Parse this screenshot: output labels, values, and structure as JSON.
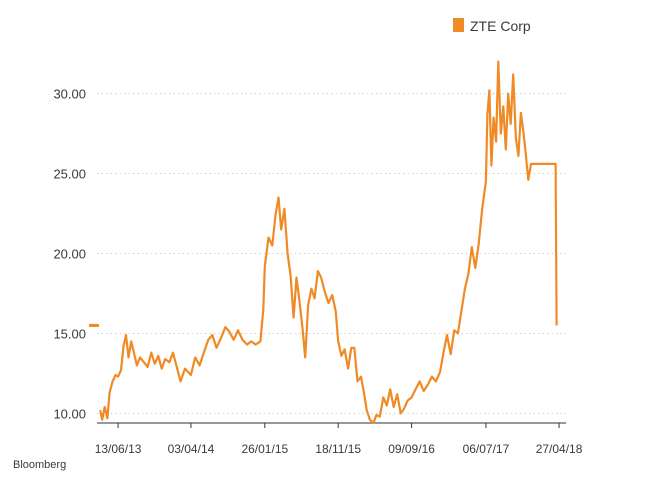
{
  "chart_data": {
    "type": "line",
    "title": "",
    "xlabel": "",
    "ylabel": "",
    "legend": {
      "position": "top-right"
    },
    "series": [
      {
        "name": "ZTE Corp",
        "color": "#f08a24",
        "points": [
          [
            "2013-04-02",
            10.2
          ],
          [
            "2013-04-10",
            9.6
          ],
          [
            "2013-04-20",
            10.4
          ],
          [
            "2013-05-01",
            9.7
          ],
          [
            "2013-05-10",
            11.3
          ],
          [
            "2013-05-22",
            12.0
          ],
          [
            "2013-06-03",
            12.4
          ],
          [
            "2013-06-13",
            12.3
          ],
          [
            "2013-06-25",
            12.7
          ],
          [
            "2013-07-05",
            14.2
          ],
          [
            "2013-07-15",
            14.9
          ],
          [
            "2013-07-25",
            13.5
          ],
          [
            "2013-08-05",
            14.5
          ],
          [
            "2013-08-16",
            13.8
          ],
          [
            "2013-08-28",
            13.0
          ],
          [
            "2013-09-10",
            13.5
          ],
          [
            "2013-09-25",
            13.2
          ],
          [
            "2013-10-10",
            12.9
          ],
          [
            "2013-10-25",
            13.8
          ],
          [
            "2013-11-08",
            13.1
          ],
          [
            "2013-11-22",
            13.6
          ],
          [
            "2013-12-06",
            12.8
          ],
          [
            "2013-12-20",
            13.4
          ],
          [
            "2014-01-06",
            13.2
          ],
          [
            "2014-01-20",
            13.8
          ],
          [
            "2014-02-05",
            12.9
          ],
          [
            "2014-02-20",
            12.0
          ],
          [
            "2014-03-10",
            12.8
          ],
          [
            "2014-04-03",
            12.4
          ],
          [
            "2014-04-20",
            13.5
          ],
          [
            "2014-05-08",
            13.0
          ],
          [
            "2014-05-25",
            13.8
          ],
          [
            "2014-06-12",
            14.6
          ],
          [
            "2014-06-28",
            14.9
          ],
          [
            "2014-07-15",
            14.1
          ],
          [
            "2014-08-02",
            14.7
          ],
          [
            "2014-08-20",
            15.4
          ],
          [
            "2014-09-05",
            15.1
          ],
          [
            "2014-09-22",
            14.6
          ],
          [
            "2014-10-10",
            15.2
          ],
          [
            "2014-10-28",
            14.6
          ],
          [
            "2014-11-15",
            14.3
          ],
          [
            "2014-12-02",
            14.5
          ],
          [
            "2014-12-20",
            14.3
          ],
          [
            "2015-01-08",
            14.5
          ],
          [
            "2015-01-20",
            16.5
          ],
          [
            "2015-01-26",
            19.2
          ],
          [
            "2015-02-10",
            21.0
          ],
          [
            "2015-02-25",
            20.5
          ],
          [
            "2015-03-10",
            22.4
          ],
          [
            "2015-03-22",
            23.5
          ],
          [
            "2015-04-02",
            21.5
          ],
          [
            "2015-04-15",
            22.8
          ],
          [
            "2015-04-28",
            20.0
          ],
          [
            "2015-05-10",
            18.6
          ],
          [
            "2015-05-22",
            16.0
          ],
          [
            "2015-06-03",
            18.5
          ],
          [
            "2015-06-15",
            17.0
          ],
          [
            "2015-06-28",
            15.2
          ],
          [
            "2015-07-08",
            13.5
          ],
          [
            "2015-07-20",
            16.8
          ],
          [
            "2015-08-02",
            17.8
          ],
          [
            "2015-08-15",
            17.2
          ],
          [
            "2015-08-28",
            18.9
          ],
          [
            "2015-09-10",
            18.5
          ],
          [
            "2015-09-25",
            17.6
          ],
          [
            "2015-10-10",
            16.9
          ],
          [
            "2015-10-25",
            17.4
          ],
          [
            "2015-11-08",
            16.4
          ],
          [
            "2015-11-18",
            14.5
          ],
          [
            "2015-12-01",
            13.6
          ],
          [
            "2015-12-14",
            14.0
          ],
          [
            "2015-12-28",
            12.8
          ],
          [
            "2016-01-10",
            14.1
          ],
          [
            "2016-01-22",
            14.1
          ],
          [
            "2016-02-04",
            12.0
          ],
          [
            "2016-02-18",
            12.3
          ],
          [
            "2016-03-02",
            11.2
          ],
          [
            "2016-03-12",
            10.2
          ],
          [
            "2016-03-25",
            9.6
          ],
          [
            "2016-04-08",
            9.4
          ],
          [
            "2016-04-20",
            9.9
          ],
          [
            "2016-05-04",
            9.8
          ],
          [
            "2016-05-18",
            11.0
          ],
          [
            "2016-06-01",
            10.5
          ],
          [
            "2016-06-15",
            11.5
          ],
          [
            "2016-06-29",
            10.4
          ],
          [
            "2016-07-13",
            11.2
          ],
          [
            "2016-07-27",
            10.0
          ],
          [
            "2016-08-10",
            10.3
          ],
          [
            "2016-08-24",
            10.8
          ],
          [
            "2016-09-09",
            11.0
          ],
          [
            "2016-09-25",
            11.5
          ],
          [
            "2016-10-12",
            12.0
          ],
          [
            "2016-10-28",
            11.4
          ],
          [
            "2016-11-14",
            11.8
          ],
          [
            "2016-11-30",
            12.3
          ],
          [
            "2016-12-16",
            12.0
          ],
          [
            "2017-01-02",
            12.6
          ],
          [
            "2017-01-16",
            13.8
          ],
          [
            "2017-01-30",
            14.9
          ],
          [
            "2017-02-14",
            13.7
          ],
          [
            "2017-02-28",
            15.2
          ],
          [
            "2017-03-15",
            15.0
          ],
          [
            "2017-03-29",
            16.4
          ],
          [
            "2017-04-12",
            17.8
          ],
          [
            "2017-04-26",
            18.7
          ],
          [
            "2017-05-10",
            20.4
          ],
          [
            "2017-05-24",
            19.1
          ],
          [
            "2017-06-07",
            20.6
          ],
          [
            "2017-06-21",
            22.8
          ],
          [
            "2017-07-06",
            24.5
          ],
          [
            "2017-07-12",
            28.7
          ],
          [
            "2017-07-20",
            30.2
          ],
          [
            "2017-07-28",
            25.5
          ],
          [
            "2017-08-06",
            28.5
          ],
          [
            "2017-08-16",
            27.0
          ],
          [
            "2017-08-25",
            32.0
          ],
          [
            "2017-09-04",
            27.5
          ],
          [
            "2017-09-14",
            29.2
          ],
          [
            "2017-09-24",
            26.5
          ],
          [
            "2017-10-04",
            30.0
          ],
          [
            "2017-10-14",
            28.1
          ],
          [
            "2017-10-24",
            31.2
          ],
          [
            "2017-11-04",
            27.2
          ],
          [
            "2017-11-14",
            26.1
          ],
          [
            "2017-11-24",
            28.8
          ],
          [
            "2017-12-04",
            27.6
          ],
          [
            "2017-12-14",
            26.2
          ],
          [
            "2017-12-24",
            24.6
          ],
          [
            "2018-01-04",
            25.6
          ],
          [
            "2018-04-13",
            25.6
          ],
          [
            "2018-04-17",
            15.5
          ]
        ]
      }
    ],
    "x_axis": {
      "type": "date",
      "range": [
        "2013-03-20",
        "2018-05-25"
      ],
      "ticks": [
        {
          "date": "2013-06-13",
          "label": "13/06/13"
        },
        {
          "date": "2014-04-03",
          "label": "03/04/14"
        },
        {
          "date": "2015-01-26",
          "label": "26/01/15"
        },
        {
          "date": "2015-11-18",
          "label": "18/11/15"
        },
        {
          "date": "2016-09-09",
          "label": "09/09/16"
        },
        {
          "date": "2017-07-06",
          "label": "06/07/17"
        },
        {
          "date": "2018-04-27",
          "label": "27/04/18"
        }
      ]
    },
    "y_axis": {
      "range": [
        9.4,
        32.6
      ],
      "ticks": [
        {
          "value": 10,
          "label": "10.00"
        },
        {
          "value": 15,
          "label": "15.00"
        },
        {
          "value": 20,
          "label": "20.00"
        },
        {
          "value": 25,
          "label": "25.00"
        },
        {
          "value": 30,
          "label": "30.00"
        }
      ],
      "grid": true,
      "current_marker": 15.5
    }
  },
  "source": "Bloomberg"
}
